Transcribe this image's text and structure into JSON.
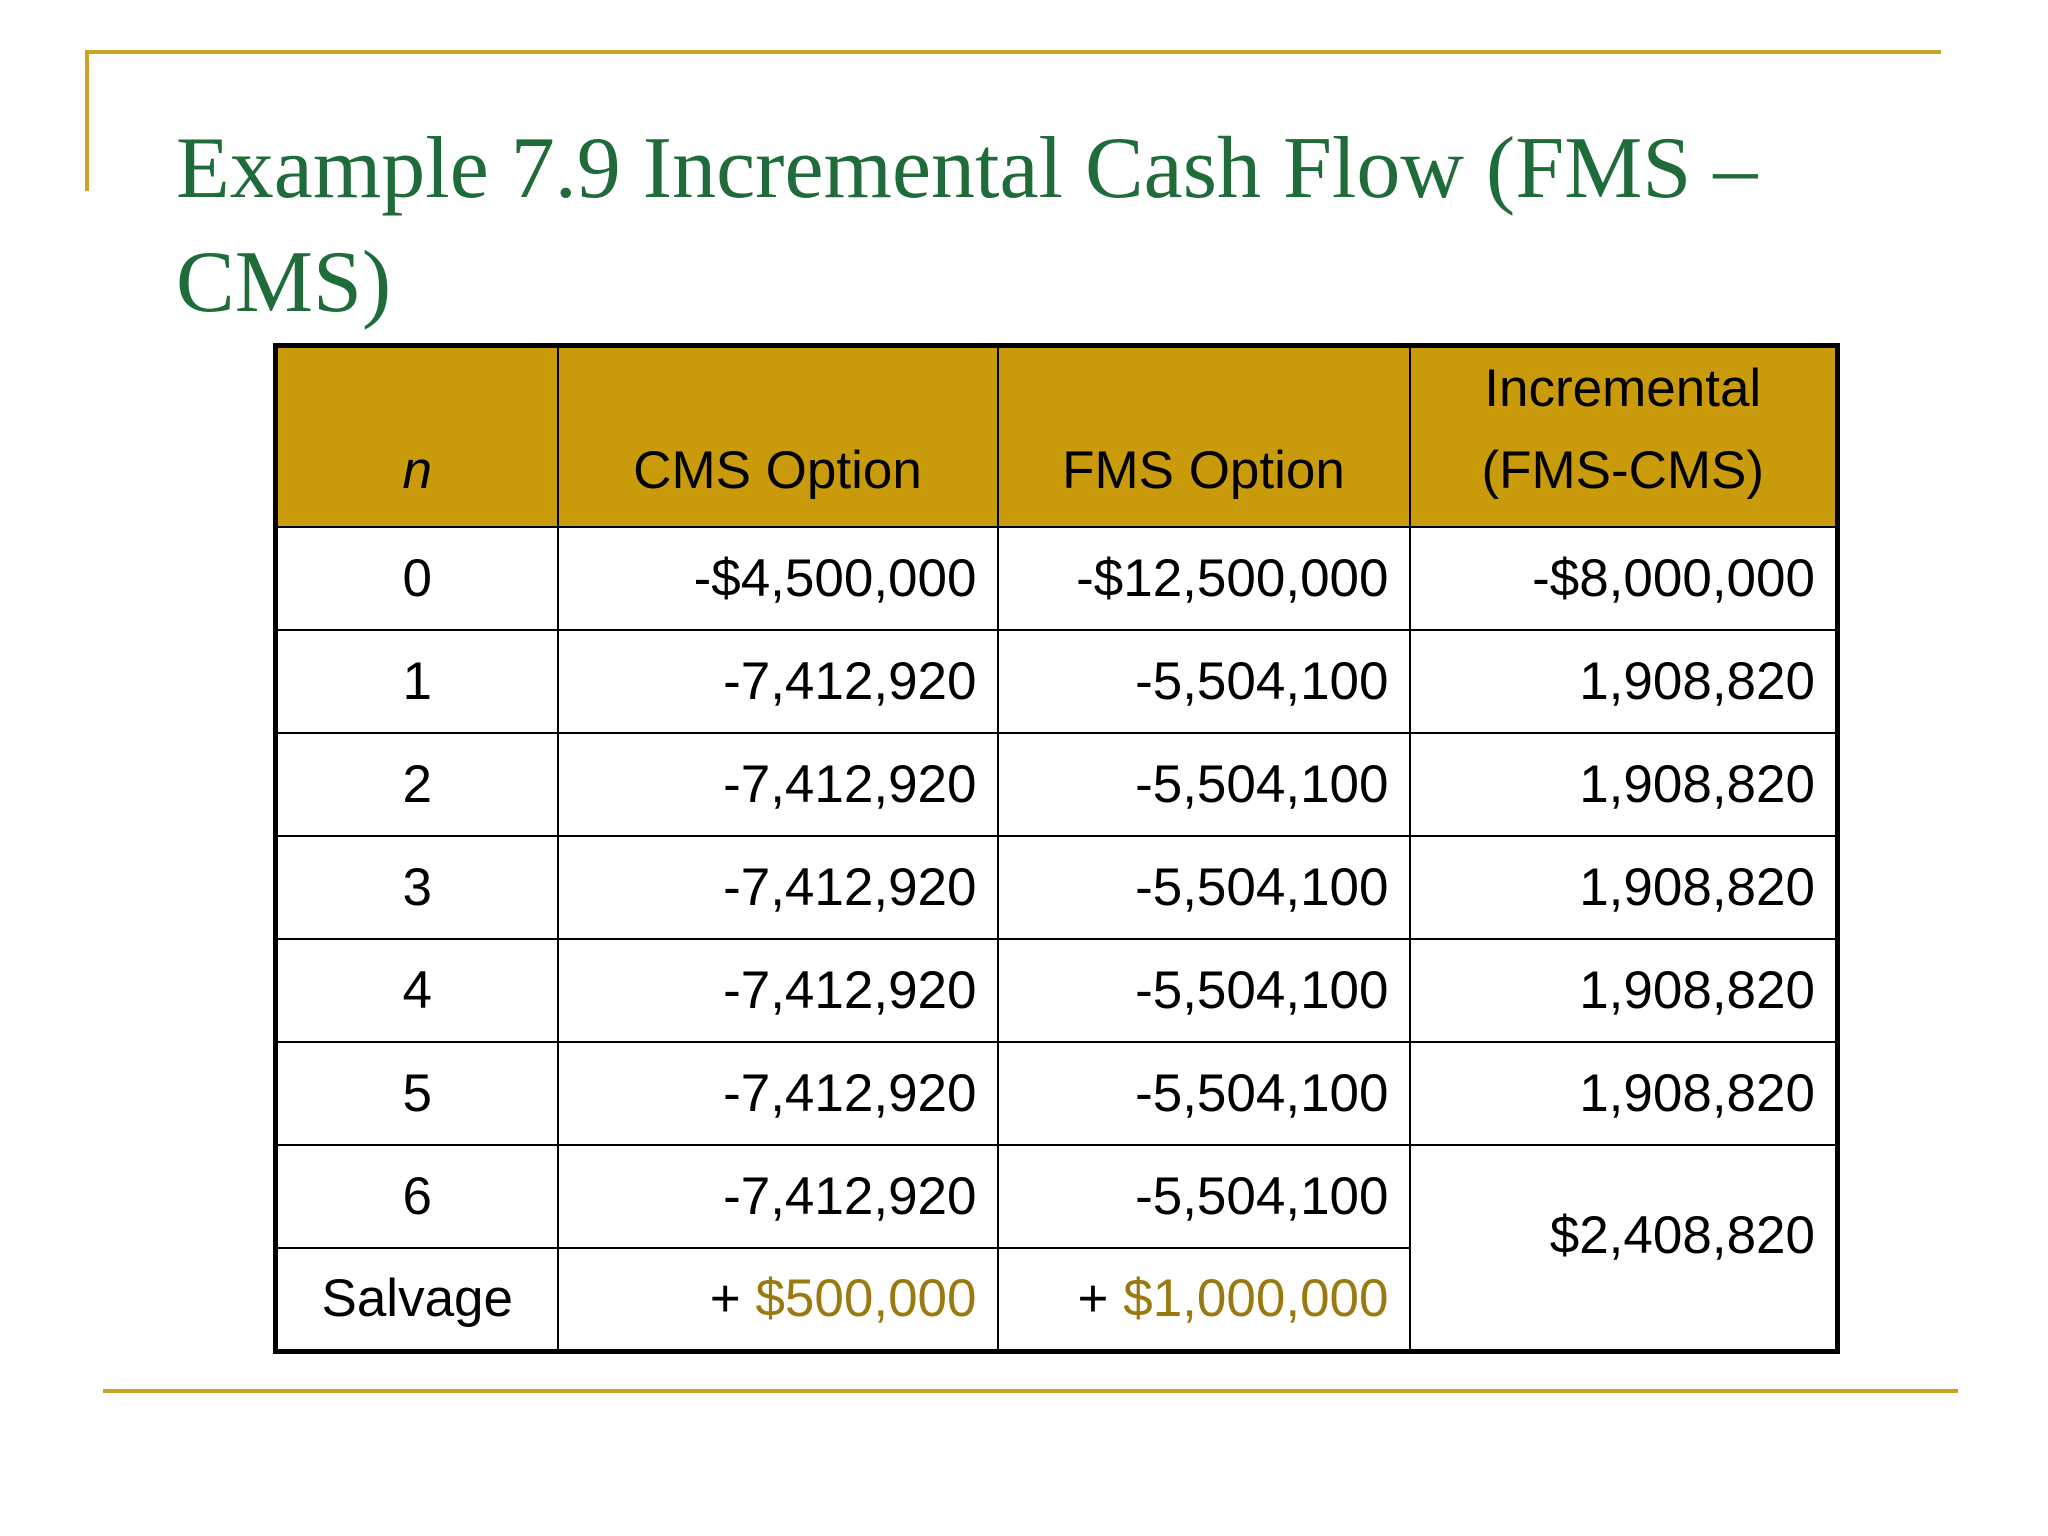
{
  "title": "Example 7.9 Incremental Cash Flow (FMS – CMS)",
  "table": {
    "headers": {
      "n": "n",
      "cms": "CMS Option",
      "fms": "FMS Option",
      "inc_line1": "Incremental",
      "inc_line2": "(FMS-CMS)"
    },
    "rows": [
      {
        "n": "0",
        "cms": "-$4,500,000",
        "fms": "-$12,500,000",
        "inc": "-$8,000,000"
      },
      {
        "n": "1",
        "cms": "-7,412,920",
        "fms": "-5,504,100",
        "inc": "1,908,820"
      },
      {
        "n": "2",
        "cms": "-7,412,920",
        "fms": "-5,504,100",
        "inc": "1,908,820"
      },
      {
        "n": "3",
        "cms": "-7,412,920",
        "fms": "-5,504,100",
        "inc": "1,908,820"
      },
      {
        "n": "4",
        "cms": "-7,412,920",
        "fms": "-5,504,100",
        "inc": "1,908,820"
      },
      {
        "n": "5",
        "cms": "-7,412,920",
        "fms": "-5,504,100",
        "inc": "1,908,820"
      },
      {
        "n": "6",
        "cms": "-7,412,920",
        "fms": "-5,504,100"
      }
    ],
    "salvage": {
      "label": "Salvage",
      "cms_prefix": "+ ",
      "cms_value": "$500,000",
      "fms_prefix": "+ ",
      "fms_value": "$1,000,000"
    },
    "combined_incremental": "$2,408,820"
  },
  "colors": {
    "accent_line": "#C9A227",
    "header_fill": "#C99A0A",
    "title_text": "#1F6B3A",
    "salvage_text": "#9A7A10"
  }
}
